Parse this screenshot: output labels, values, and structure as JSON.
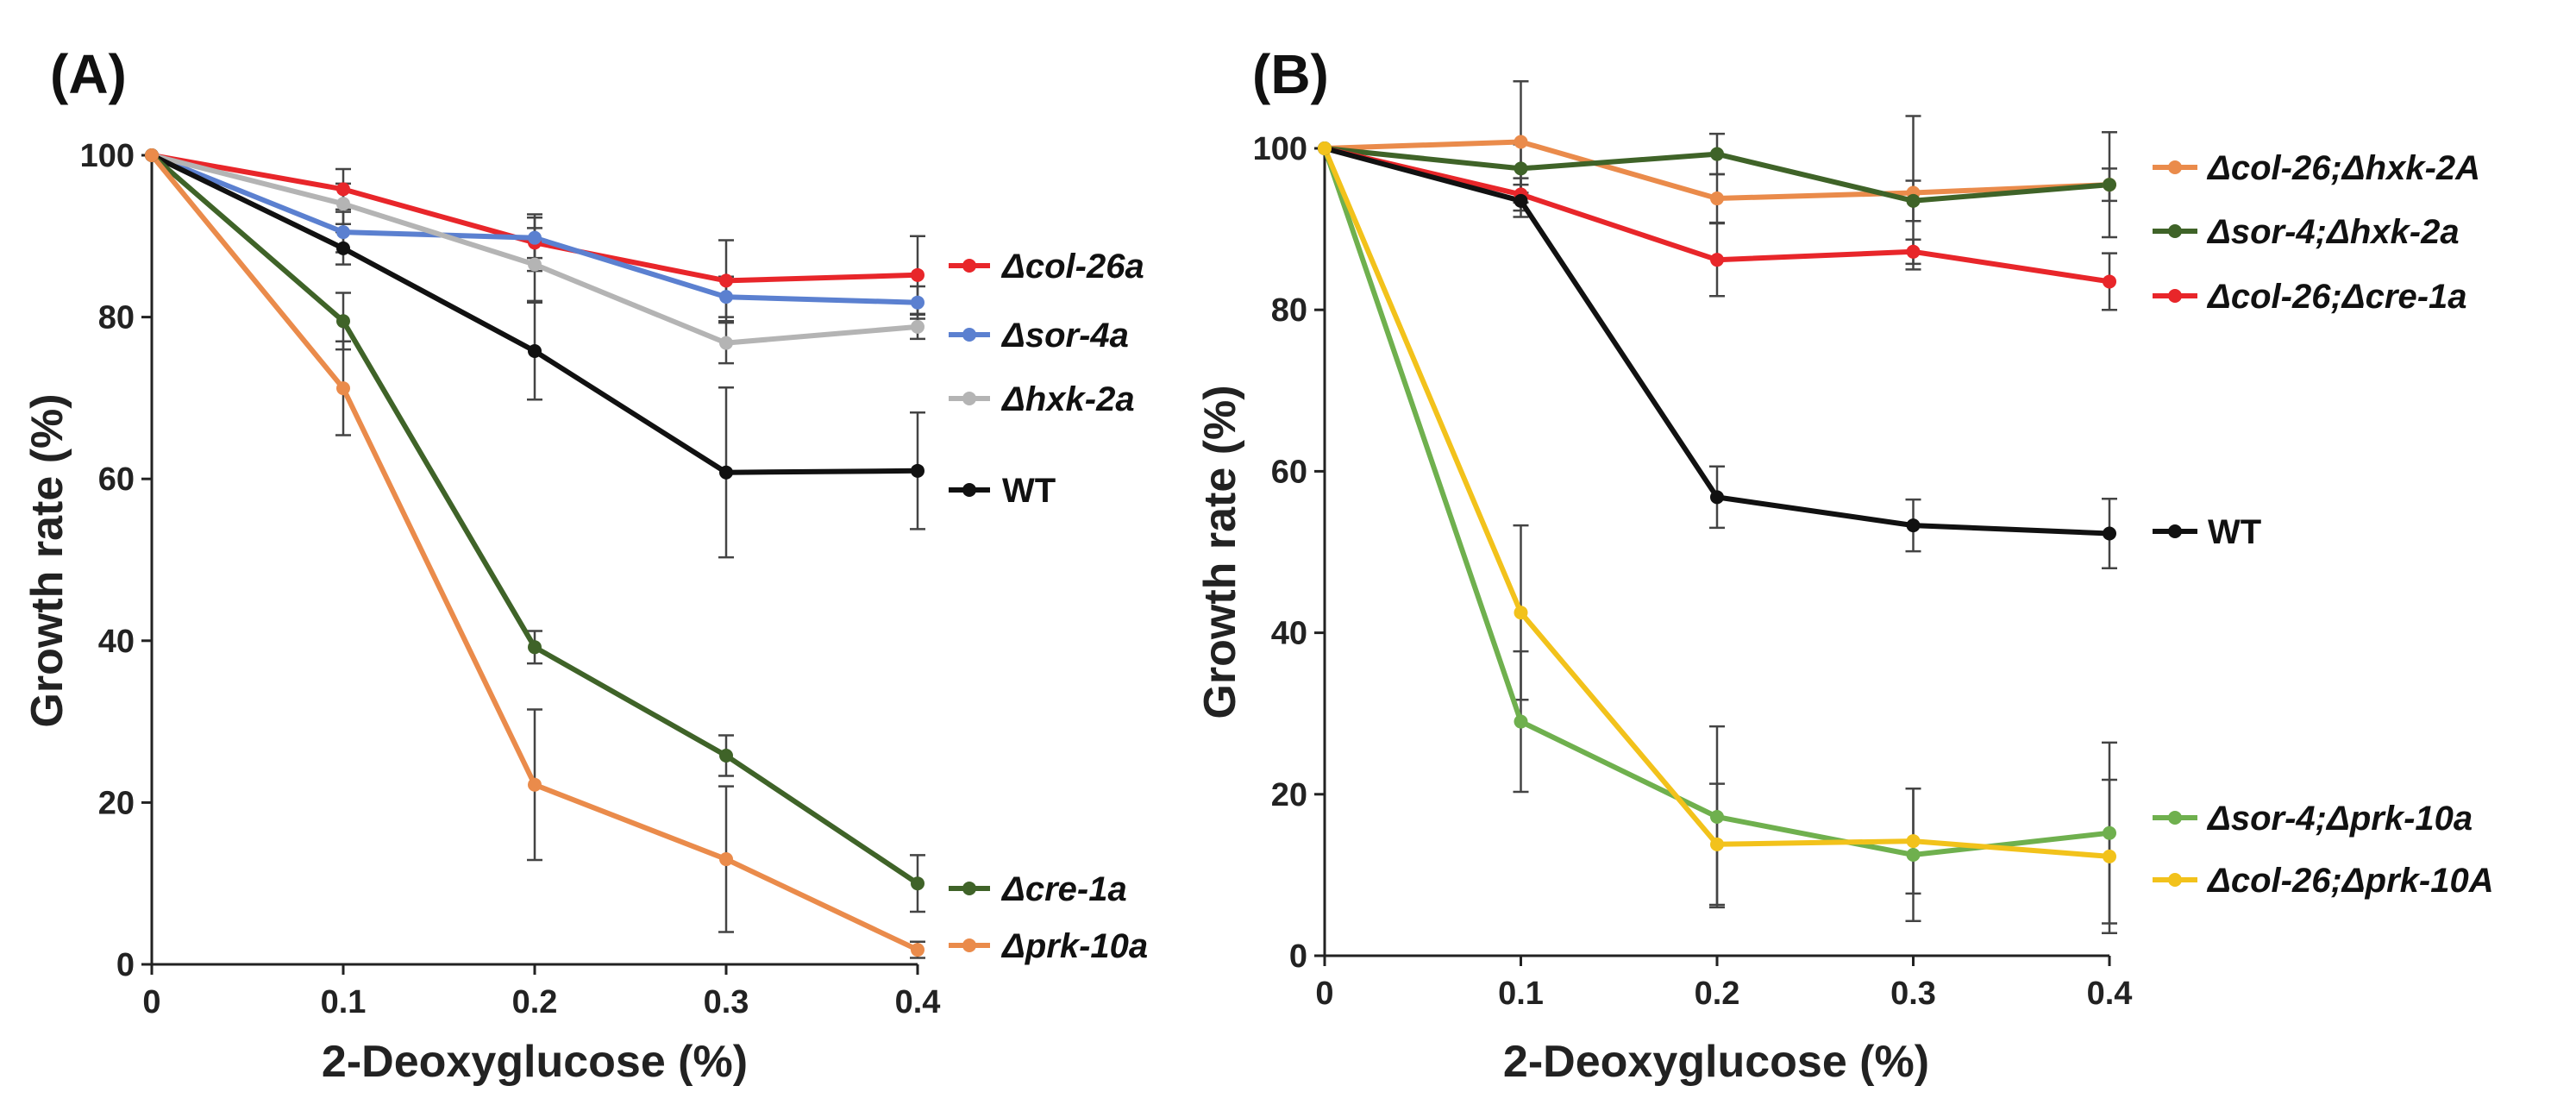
{
  "chart_data": [
    {
      "type": "line",
      "panel_label": "(A)",
      "xlabel": "2-Deoxyglucose (%)",
      "ylabel": "Growth rate (%)",
      "x": [
        0,
        0.1,
        0.2,
        0.3,
        0.4
      ],
      "x_tick_labels": [
        "0",
        "0.1",
        "0.2",
        "0.3",
        "0.4"
      ],
      "ylim": [
        0,
        100
      ],
      "y_ticks": [
        0,
        20,
        40,
        60,
        80,
        100
      ],
      "y_tick_labels": [
        "0",
        "20",
        "40",
        "60",
        "80",
        "100"
      ],
      "grid": false,
      "legend_position": "right",
      "series": [
        {
          "name": "Δcol-26a",
          "color": "#e8262a",
          "values": [
            100,
            95.8,
            89.2,
            84.5,
            85.2
          ],
          "errors": [
            0,
            2.5,
            3.5,
            5,
            4.8
          ]
        },
        {
          "name": "Δsor-4a",
          "color": "#5b80d0",
          "values": [
            100,
            90.5,
            89.8,
            82.5,
            81.8
          ],
          "errors": [
            0,
            2.5,
            2.5,
            2.5,
            2
          ]
        },
        {
          "name": "Δhxk-2a",
          "color": "#b4b4b4",
          "values": [
            100,
            94.0,
            86.5,
            76.8,
            78.8
          ],
          "errors": [
            0,
            2.5,
            4.5,
            2.5,
            1.5
          ]
        },
        {
          "name": "WT",
          "color": "#111111",
          "values": [
            100,
            88.5,
            75.8,
            60.8,
            61.0
          ],
          "errors": [
            0,
            2,
            6,
            10.5,
            7.2
          ]
        },
        {
          "name": "Δcre-1a",
          "color": "#3f6328",
          "values": [
            100,
            79.5,
            39.2,
            25.8,
            10.0
          ],
          "errors": [
            0,
            3.5,
            2,
            2.5,
            3.5
          ]
        },
        {
          "name": "Δprk-10a",
          "color": "#ea8b4b",
          "values": [
            100,
            71.2,
            22.2,
            13.0,
            1.8
          ],
          "errors": [
            0,
            5.8,
            9.3,
            9,
            1
          ]
        }
      ]
    },
    {
      "type": "line",
      "panel_label": "(B)",
      "xlabel": "2-Deoxyglucose (%)",
      "ylabel": "Growth rate (%)",
      "x": [
        0,
        0.1,
        0.2,
        0.3,
        0.4
      ],
      "x_tick_labels": [
        "0",
        "0.1",
        "0.2",
        "0.3",
        "0.4"
      ],
      "ylim": [
        0,
        100
      ],
      "y_ticks": [
        0,
        20,
        40,
        60,
        80,
        100
      ],
      "y_tick_labels": [
        "0",
        "20",
        "40",
        "60",
        "80",
        "100"
      ],
      "grid": false,
      "legend_position": "right",
      "series": [
        {
          "name": "Δcol-26;Δhxk-2A",
          "color": "#ea8b4b",
          "values": [
            100,
            100.8,
            93.8,
            94.5,
            95.5
          ],
          "errors": [
            0,
            7.5,
            3,
            9.5,
            6.5
          ]
        },
        {
          "name": "Δsor-4;Δhxk-2a",
          "color": "#3f6328",
          "values": [
            100,
            97.5,
            99.3,
            93.5,
            95.5
          ],
          "errors": [
            0,
            3,
            2.5,
            2.5,
            2
          ]
        },
        {
          "name": "Δcol-26;Δcre-1a",
          "color": "#e8262a",
          "values": [
            100,
            94.3,
            86.2,
            87.2,
            83.5
          ],
          "errors": [
            0,
            2,
            4.5,
            1.5,
            3.5
          ]
        },
        {
          "name": "WT",
          "color": "#111111",
          "values": [
            100,
            93.5,
            56.8,
            53.3,
            52.3
          ],
          "errors": [
            0,
            2,
            3.8,
            3.2,
            4.3
          ]
        },
        {
          "name": "Δsor-4;Δprk-10a",
          "color": "#6fb04e",
          "values": [
            100,
            29.0,
            17.2,
            12.5,
            15.2
          ],
          "errors": [
            0,
            8.7,
            11.2,
            8.2,
            11.2
          ]
        },
        {
          "name": "Δcol-26;Δprk-10A",
          "color": "#f2c21b",
          "values": [
            100,
            42.5,
            13.8,
            14.2,
            12.3
          ],
          "errors": [
            0,
            10.8,
            7.5,
            6.5,
            9.5
          ]
        }
      ]
    }
  ]
}
